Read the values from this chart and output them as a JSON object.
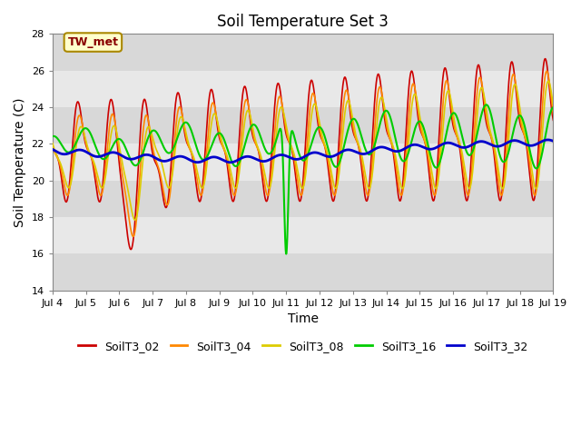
{
  "title": "Soil Temperature Set 3",
  "xlabel": "Time",
  "ylabel": "Soil Temperature (C)",
  "ylim": [
    14,
    28
  ],
  "xlim": [
    0,
    360
  ],
  "xtick_positions": [
    0,
    24,
    48,
    72,
    96,
    120,
    144,
    168,
    192,
    216,
    240,
    264,
    288,
    312,
    336,
    360
  ],
  "xtick_labels": [
    "Jul 4",
    "Jul 5",
    "Jul 6",
    "Jul 7",
    "Jul 8",
    "Jul 9",
    "Jul 10",
    "Jul 11",
    "Jul 12",
    "Jul 13",
    "Jul 14",
    "Jul 15",
    "Jul 16",
    "Jul 17",
    "Jul 18",
    "Jul 19"
  ],
  "annotation": "TW_met",
  "annotation_color": "#880000",
  "annotation_bg": "#ffffcc",
  "annotation_border": "#aa8800",
  "legend_entries": [
    "SoilT3_02",
    "SoilT3_04",
    "SoilT3_08",
    "SoilT3_16",
    "SoilT3_32"
  ],
  "line_colors": [
    "#cc0000",
    "#ff8800",
    "#ddcc00",
    "#00cc00",
    "#0000cc"
  ],
  "line_widths": [
    1.2,
    1.2,
    1.2,
    1.5,
    2.0
  ],
  "band_colors": [
    "#e8e8e8",
    "#d4d4d4"
  ],
  "title_fontsize": 12,
  "axis_fontsize": 10,
  "tick_fontsize": 8
}
